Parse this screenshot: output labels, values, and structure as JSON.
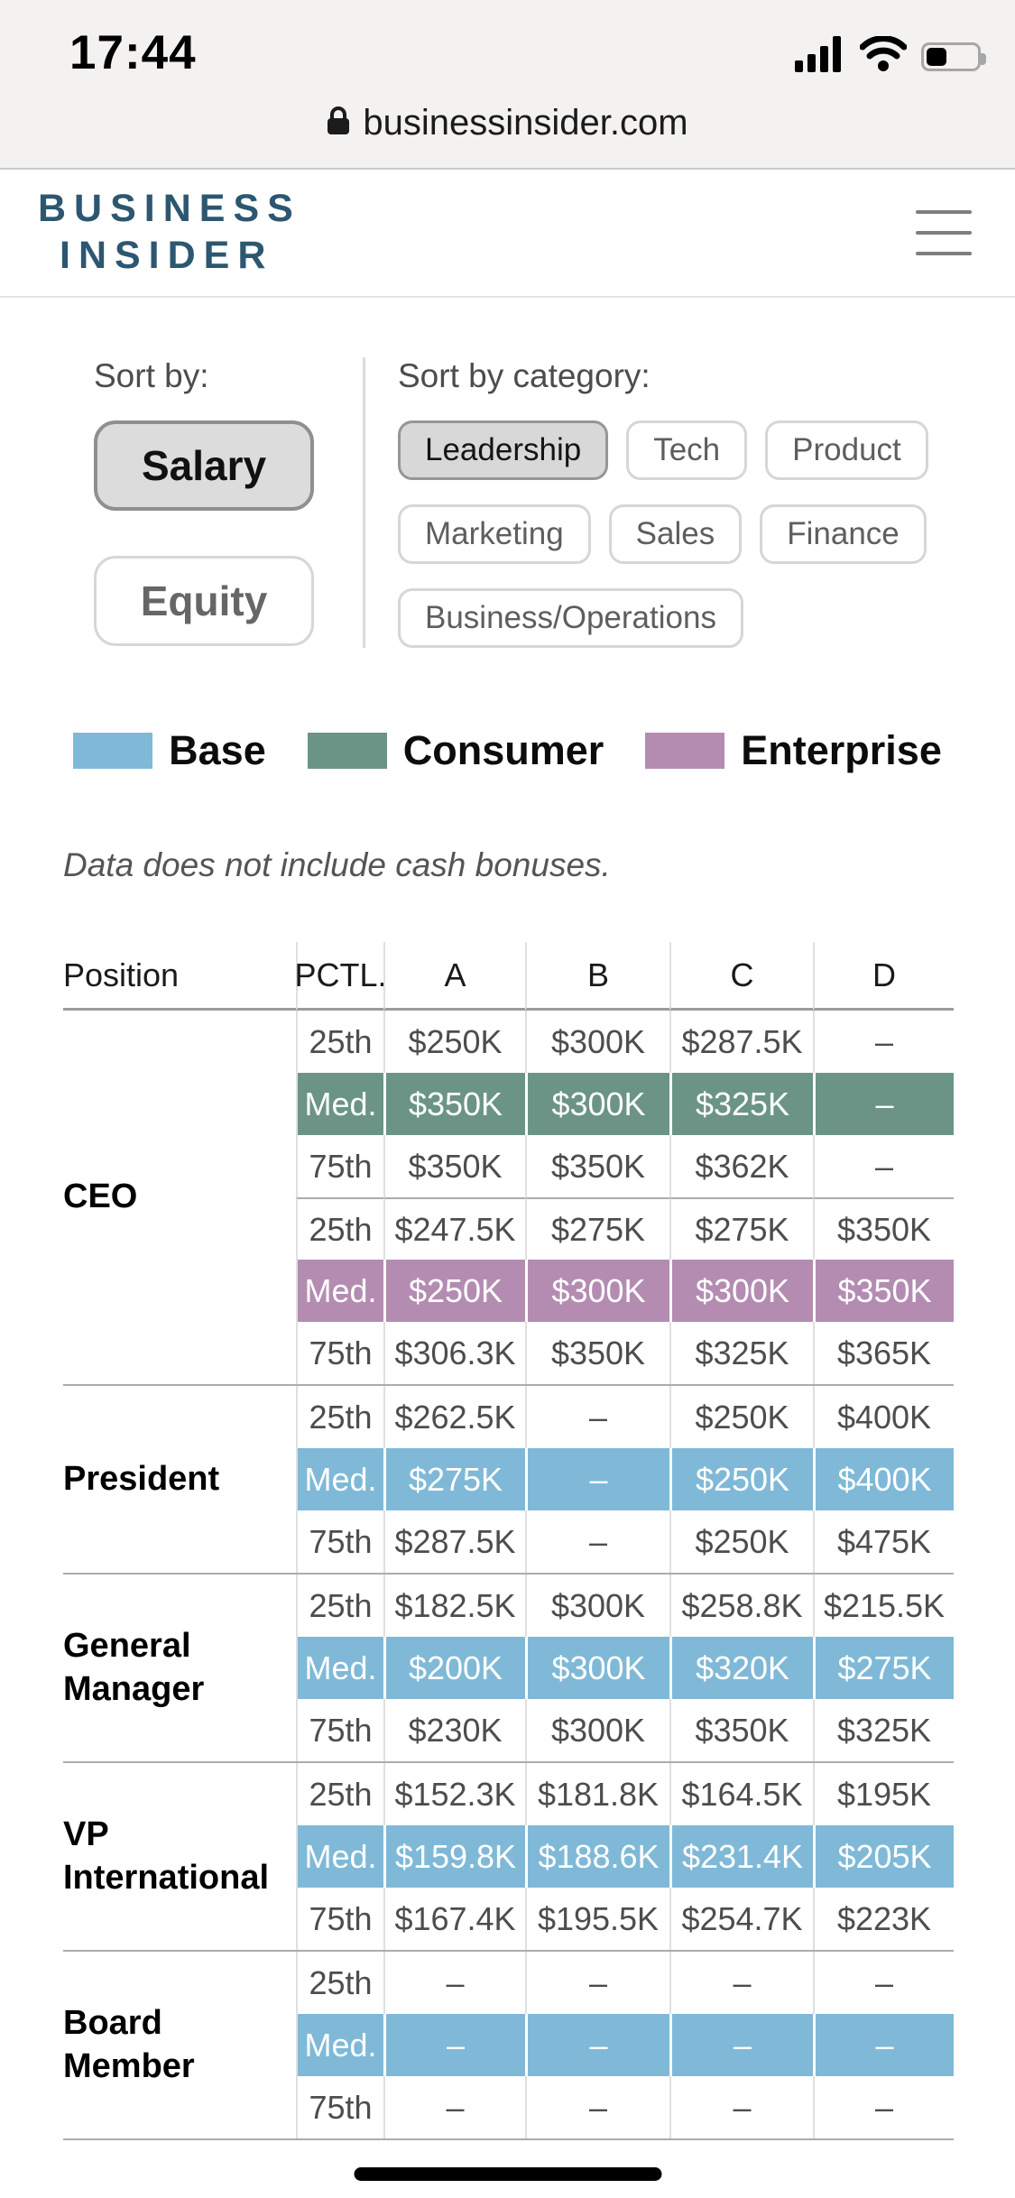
{
  "status_bar": {
    "time": "17:44",
    "icons": [
      "cellular-signal",
      "wifi",
      "battery"
    ]
  },
  "url_bar": {
    "domain": "businessinsider.com",
    "lock_icon": "lock"
  },
  "header": {
    "logo": {
      "line1": "BUSINESS",
      "line2": "INSIDER"
    },
    "menu_icon": "hamburger-menu"
  },
  "filters": {
    "sort_by": {
      "label": "Sort by:",
      "options": [
        {
          "label": "Salary",
          "selected": true
        },
        {
          "label": "Equity",
          "selected": false
        }
      ]
    },
    "sort_by_category": {
      "label": "Sort by category:",
      "options": [
        {
          "label": "Leadership",
          "selected": true
        },
        {
          "label": "Tech",
          "selected": false
        },
        {
          "label": "Product",
          "selected": false
        },
        {
          "label": "Marketing",
          "selected": false
        },
        {
          "label": "Sales",
          "selected": false
        },
        {
          "label": "Finance",
          "selected": false
        },
        {
          "label": "Business/Operations",
          "selected": false
        }
      ]
    }
  },
  "legend": {
    "items": [
      {
        "label": "Base",
        "color": "#7FB9D7"
      },
      {
        "label": "Consumer",
        "color": "#6B9487"
      },
      {
        "label": "Enterprise",
        "color": "#B48CB2"
      }
    ]
  },
  "note": "Data does not include cash bonuses.",
  "table": {
    "columns": [
      "Position",
      "PCTL.",
      "A",
      "B",
      "C",
      "D"
    ],
    "series_colors": {
      "Base": "#7FB9D7",
      "Consumer": "#6B9487",
      "Enterprise": "#B48CB2"
    },
    "groups": [
      {
        "position": "CEO",
        "blocks": [
          {
            "rows": [
              {
                "pctl": "25th",
                "values": [
                  "$250K",
                  "$300K",
                  "$287.5K",
                  "–"
                ]
              },
              {
                "pctl": "Med.",
                "values": [
                  "$350K",
                  "$300K",
                  "$325K",
                  "–"
                ],
                "series": "Consumer"
              },
              {
                "pctl": "75th",
                "values": [
                  "$350K",
                  "$350K",
                  "$362K",
                  "–"
                ]
              }
            ]
          },
          {
            "rows": [
              {
                "pctl": "25th",
                "values": [
                  "$247.5K",
                  "$275K",
                  "$275K",
                  "$350K"
                ]
              },
              {
                "pctl": "Med.",
                "values": [
                  "$250K",
                  "$300K",
                  "$300K",
                  "$350K"
                ],
                "series": "Enterprise"
              },
              {
                "pctl": "75th",
                "values": [
                  "$306.3K",
                  "$350K",
                  "$325K",
                  "$365K"
                ]
              }
            ]
          }
        ]
      },
      {
        "position": "President",
        "blocks": [
          {
            "rows": [
              {
                "pctl": "25th",
                "values": [
                  "$262.5K",
                  "–",
                  "$250K",
                  "$400K"
                ]
              },
              {
                "pctl": "Med.",
                "values": [
                  "$275K",
                  "–",
                  "$250K",
                  "$400K"
                ],
                "series": "Base"
              },
              {
                "pctl": "75th",
                "values": [
                  "$287.5K",
                  "–",
                  "$250K",
                  "$475K"
                ]
              }
            ]
          }
        ]
      },
      {
        "position": "General Manager",
        "blocks": [
          {
            "rows": [
              {
                "pctl": "25th",
                "values": [
                  "$182.5K",
                  "$300K",
                  "$258.8K",
                  "$215.5K"
                ]
              },
              {
                "pctl": "Med.",
                "values": [
                  "$200K",
                  "$300K",
                  "$320K",
                  "$275K"
                ],
                "series": "Base"
              },
              {
                "pctl": "75th",
                "values": [
                  "$230K",
                  "$300K",
                  "$350K",
                  "$325K"
                ]
              }
            ]
          }
        ]
      },
      {
        "position": "VP International",
        "blocks": [
          {
            "rows": [
              {
                "pctl": "25th",
                "values": [
                  "$152.3K",
                  "$181.8K",
                  "$164.5K",
                  "$195K"
                ]
              },
              {
                "pctl": "Med.",
                "values": [
                  "$159.8K",
                  "$188.6K",
                  "$231.4K",
                  "$205K"
                ],
                "series": "Base"
              },
              {
                "pctl": "75th",
                "values": [
                  "$167.4K",
                  "$195.5K",
                  "$254.7K",
                  "$223K"
                ]
              }
            ]
          }
        ]
      },
      {
        "position": "Board Member",
        "blocks": [
          {
            "rows": [
              {
                "pctl": "25th",
                "values": [
                  "–",
                  "–",
                  "–",
                  "–"
                ]
              },
              {
                "pctl": "Med.",
                "values": [
                  "–",
                  "–",
                  "–",
                  "–"
                ],
                "series": "Base"
              },
              {
                "pctl": "75th",
                "values": [
                  "–",
                  "–",
                  "–",
                  "–"
                ]
              }
            ]
          }
        ]
      }
    ]
  }
}
